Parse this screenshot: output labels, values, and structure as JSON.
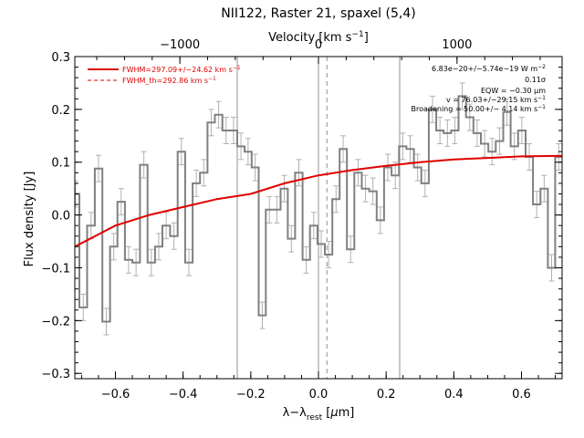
{
  "chart_data": {
    "type": "line",
    "title": "NII122, Raster 21, spaxel (5,4)",
    "xlabel_html": "λ−λ",
    "xlabel_sub": "rest",
    "xlabel_unit_open": " [",
    "xlabel_unit_mu": "μ",
    "xlabel_unit_close": "m]",
    "ylabel": "Flux density [Jy]",
    "top_axis_label": "Velocity [km s",
    "top_axis_label_sup": "−1",
    "top_axis_label_close": "]",
    "xlim": [
      -0.72,
      0.72
    ],
    "ylim": [
      -0.31,
      0.3
    ],
    "x_ticks": [
      -0.6,
      -0.4,
      -0.2,
      0.0,
      0.2,
      0.4,
      0.6
    ],
    "x_tick_labels": [
      "−0.6",
      "−0.4",
      "−0.2",
      "0.0",
      "0.2",
      "0.4",
      "0.6"
    ],
    "y_ticks": [
      -0.3,
      -0.2,
      -0.1,
      0.0,
      0.1,
      0.2,
      0.3
    ],
    "y_tick_labels": [
      "−0.3",
      "−0.2",
      "−0.1",
      "0.0",
      "0.1",
      "0.2",
      "0.3"
    ],
    "top_ticks_velocity": [
      -1000,
      0,
      1000
    ],
    "top_tick_labels": [
      "−1000",
      "0",
      "1000"
    ],
    "velocity_per_micron": 2442,
    "vertical_lines": [
      {
        "x": -0.24,
        "style": "solid"
      },
      {
        "x": 0.0,
        "style": "solid"
      },
      {
        "x": 0.025,
        "style": "dashed"
      },
      {
        "x": 0.24,
        "style": "solid"
      }
    ],
    "legend": {
      "placement": "top-left",
      "entries": [
        {
          "label": "FWHM=297.09+/−24.62 km s",
          "sup": "−1",
          "style": "solid"
        },
        {
          "label": "FWHM_th=292.86 km s",
          "sup": "−1",
          "style": "dashed"
        }
      ]
    },
    "annotations": [
      {
        "text": "6.83e−20+/−5.74e−19 W m",
        "sup": "−2"
      },
      {
        "text": "0.11σ",
        "sup": ""
      },
      {
        "text": "EQW = −0.30 μm",
        "sup": ""
      },
      {
        "text": "v = 76.03+/−29.15 km s",
        "sup": "−1"
      },
      {
        "text": "Broadening = 50.00+/− 4.14 km s",
        "sup": "−1"
      }
    ],
    "colors": {
      "spectrum": "#808080",
      "fit": "#e00000",
      "errors": "#b0b0b0",
      "guides": "#909090"
    },
    "series": [
      {
        "type": "step",
        "x": [
          -0.718,
          -0.695,
          -0.672,
          -0.65,
          -0.627,
          -0.605,
          -0.583,
          -0.561,
          -0.539,
          -0.516,
          -0.494,
          -0.472,
          -0.45,
          -0.427,
          -0.405,
          -0.383,
          -0.361,
          -0.339,
          -0.317,
          -0.295,
          -0.273,
          -0.251,
          -0.229,
          -0.208,
          -0.187,
          -0.166,
          -0.145,
          -0.123,
          -0.101,
          -0.08,
          -0.058,
          -0.036,
          -0.014,
          0.008,
          0.03,
          0.052,
          0.073,
          0.095,
          0.117,
          0.139,
          0.161,
          0.183,
          0.205,
          0.227,
          0.249,
          0.271,
          0.293,
          0.315,
          0.337,
          0.359,
          0.381,
          0.403,
          0.425,
          0.447,
          0.469,
          0.491,
          0.513,
          0.535,
          0.557,
          0.579,
          0.601,
          0.623,
          0.645,
          0.667,
          0.689,
          0.71
        ],
        "values": [
          0.04,
          -0.175,
          -0.02,
          0.088,
          -0.202,
          -0.06,
          0.025,
          -0.085,
          -0.09,
          0.095,
          -0.09,
          -0.06,
          -0.02,
          -0.04,
          0.12,
          -0.09,
          0.06,
          0.08,
          0.175,
          0.19,
          0.16,
          0.16,
          0.13,
          0.12,
          0.09,
          -0.19,
          0.01,
          0.01,
          0.05,
          -0.045,
          0.08,
          -0.085,
          -0.02,
          -0.055,
          -0.075,
          0.03,
          0.125,
          -0.065,
          0.08,
          0.05,
          0.045,
          -0.01,
          0.09,
          0.075,
          0.13,
          0.125,
          0.09,
          0.06,
          0.2,
          0.16,
          0.155,
          0.16,
          0.225,
          0.185,
          0.155,
          0.135,
          0.12,
          0.14,
          0.195,
          0.13,
          0.16,
          0.11,
          0.02,
          0.05,
          -0.1,
          0.11
        ],
        "errors": [
          0.025,
          0.025,
          0.025,
          0.025,
          0.025,
          0.025,
          0.025,
          0.025,
          0.025,
          0.025,
          0.025,
          0.025,
          0.025,
          0.025,
          0.025,
          0.025,
          0.025,
          0.025,
          0.025,
          0.025,
          0.025,
          0.025,
          0.025,
          0.025,
          0.025,
          0.025,
          0.025,
          0.025,
          0.025,
          0.025,
          0.025,
          0.025,
          0.025,
          0.025,
          0.025,
          0.025,
          0.025,
          0.025,
          0.025,
          0.025,
          0.025,
          0.025,
          0.025,
          0.025,
          0.025,
          0.025,
          0.025,
          0.025,
          0.025,
          0.025,
          0.025,
          0.025,
          0.025,
          0.025,
          0.025,
          0.025,
          0.025,
          0.025,
          0.025,
          0.025,
          0.025,
          0.025,
          0.025,
          0.025,
          0.025,
          0.025
        ]
      },
      {
        "type": "line",
        "x": [
          -0.72,
          -0.6,
          -0.5,
          -0.4,
          -0.3,
          -0.2,
          -0.1,
          0.0,
          0.1,
          0.2,
          0.3,
          0.4,
          0.5,
          0.6,
          0.72
        ],
        "values": [
          -0.06,
          -0.02,
          0.0,
          0.015,
          0.03,
          0.04,
          0.06,
          0.075,
          0.085,
          0.093,
          0.1,
          0.105,
          0.108,
          0.111,
          0.112
        ]
      }
    ]
  }
}
